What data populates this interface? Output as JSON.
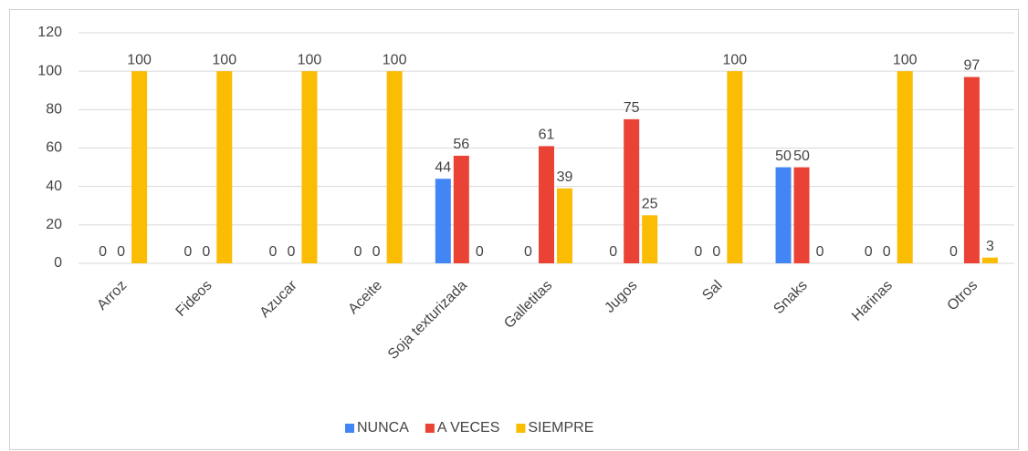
{
  "chart_data": {
    "type": "bar",
    "categories": [
      "Arroz",
      "Fideos",
      "Azucar",
      "Aceite",
      "Soja texturizada",
      "Galletitas",
      "Jugos",
      "Sal",
      "Snaks",
      "Harinas",
      "Otros"
    ],
    "series": [
      {
        "name": "NUNCA",
        "color": "#4285f4",
        "values": [
          0,
          0,
          0,
          0,
          44,
          0,
          0,
          0,
          50,
          0,
          0
        ]
      },
      {
        "name": "A VECES",
        "color": "#ea4335",
        "values": [
          0,
          0,
          0,
          0,
          56,
          61,
          75,
          0,
          50,
          0,
          97
        ]
      },
      {
        "name": "SIEMPRE",
        "color": "#fbbc04",
        "values": [
          100,
          100,
          100,
          100,
          0,
          39,
          25,
          100,
          0,
          100,
          3
        ]
      }
    ],
    "ylim": [
      0,
      120
    ],
    "yticks": [
      0,
      20,
      40,
      60,
      80,
      100,
      120
    ],
    "grid": true,
    "legend": "bottom"
  }
}
